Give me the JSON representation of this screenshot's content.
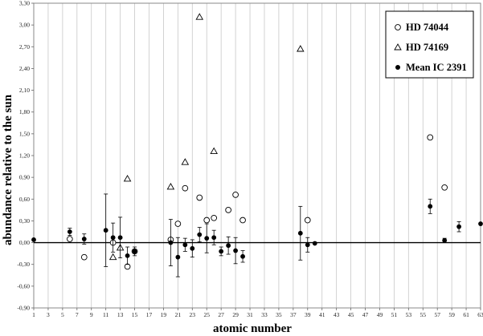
{
  "chart_data": {
    "type": "scatter",
    "xlabel": "atomic number",
    "ylabel": "abundance relative to the sun",
    "xlim": [
      1,
      63
    ],
    "ylim": [
      -0.9,
      3.3
    ],
    "xticks": [
      1,
      3,
      5,
      7,
      9,
      11,
      13,
      15,
      17,
      19,
      21,
      23,
      25,
      27,
      29,
      31,
      33,
      35,
      37,
      39,
      41,
      43,
      45,
      47,
      49,
      51,
      53,
      55,
      57,
      59,
      61,
      63
    ],
    "yticks": [
      -0.9,
      -0.6,
      -0.3,
      0.0,
      0.3,
      0.6,
      0.9,
      1.2,
      1.5,
      1.8,
      2.1,
      2.4,
      2.7,
      3.0,
      3.3
    ],
    "ytick_labels": [
      "-0,90",
      "-0,60",
      "-0,30",
      "0,00",
      "0,30",
      "0,60",
      "0,90",
      "1,20",
      "1,50",
      "1,80",
      "2,10",
      "2,40",
      "2,70",
      "3,00",
      "3,30"
    ],
    "grid": "vertical gridlines at odd integers",
    "legend_position": "top-right",
    "series": [
      {
        "name": "HD 74044",
        "marker": "open-circle",
        "points": [
          {
            "x": 6,
            "y": 0.05
          },
          {
            "x": 8,
            "y": -0.2
          },
          {
            "x": 12,
            "y": 0.0
          },
          {
            "x": 14,
            "y": -0.33
          },
          {
            "x": 15,
            "y": -0.12
          },
          {
            "x": 20,
            "y": 0.04
          },
          {
            "x": 21,
            "y": 0.26
          },
          {
            "x": 22,
            "y": 0.75
          },
          {
            "x": 24,
            "y": 0.62
          },
          {
            "x": 25,
            "y": 0.31
          },
          {
            "x": 26,
            "y": 0.34
          },
          {
            "x": 28,
            "y": 0.45
          },
          {
            "x": 29,
            "y": 0.66
          },
          {
            "x": 30,
            "y": 0.31
          },
          {
            "x": 39,
            "y": 0.31
          },
          {
            "x": 56,
            "y": 1.45
          },
          {
            "x": 58,
            "y": 0.76
          }
        ]
      },
      {
        "name": "HD 74169",
        "marker": "open-triangle",
        "points": [
          {
            "x": 12,
            "y": -0.2
          },
          {
            "x": 13,
            "y": -0.07
          },
          {
            "x": 14,
            "y": 0.88
          },
          {
            "x": 20,
            "y": 0.77
          },
          {
            "x": 22,
            "y": 1.11
          },
          {
            "x": 24,
            "y": 3.11
          },
          {
            "x": 26,
            "y": 1.26
          },
          {
            "x": 38,
            "y": 2.67
          }
        ]
      },
      {
        "name": "Mean IC 2391",
        "marker": "filled-circle",
        "points": [
          {
            "x": 1,
            "y": 0.04,
            "err": 0
          },
          {
            "x": 6,
            "y": 0.15,
            "err": 0.05
          },
          {
            "x": 8,
            "y": 0.05,
            "err": 0.07
          },
          {
            "x": 11,
            "y": 0.17,
            "err": 0.5
          },
          {
            "x": 12,
            "y": 0.07,
            "err": 0.2
          },
          {
            "x": 13,
            "y": 0.07,
            "err": 0.28
          },
          {
            "x": 14,
            "y": -0.18,
            "err": 0.12
          },
          {
            "x": 15,
            "y": -0.12,
            "err": 0.06
          },
          {
            "x": 20,
            "y": 0.0,
            "err": 0.32
          },
          {
            "x": 21,
            "y": -0.2,
            "err": 0.27
          },
          {
            "x": 22,
            "y": -0.03,
            "err": 0.09
          },
          {
            "x": 23,
            "y": -0.08,
            "err": 0.12
          },
          {
            "x": 24,
            "y": 0.11,
            "err": 0.1
          },
          {
            "x": 25,
            "y": 0.06,
            "err": 0.2
          },
          {
            "x": 26,
            "y": 0.07,
            "err": 0.1
          },
          {
            "x": 27,
            "y": -0.12,
            "err": 0.06
          },
          {
            "x": 28,
            "y": -0.04,
            "err": 0.12
          },
          {
            "x": 29,
            "y": -0.11,
            "err": 0.18
          },
          {
            "x": 30,
            "y": -0.19,
            "err": 0.08
          },
          {
            "x": 38,
            "y": 0.13,
            "err": 0.37
          },
          {
            "x": 39,
            "y": -0.03,
            "err": 0.1
          },
          {
            "x": 40,
            "y": -0.01,
            "err": 0
          },
          {
            "x": 56,
            "y": 0.5,
            "err": 0.1
          },
          {
            "x": 58,
            "y": 0.03,
            "err": 0.03
          },
          {
            "x": 60,
            "y": 0.22,
            "err": 0.07
          },
          {
            "x": 63,
            "y": 0.26,
            "err": 0
          }
        ]
      }
    ]
  }
}
